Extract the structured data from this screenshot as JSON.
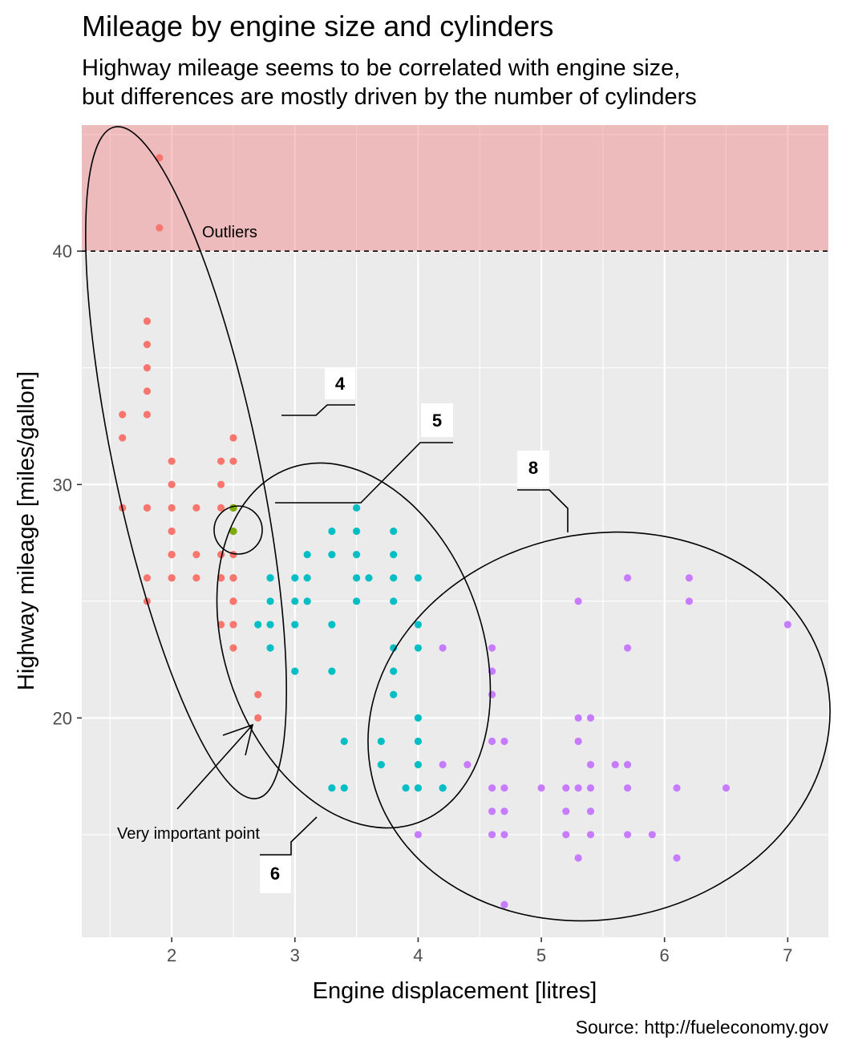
{
  "chart_data": {
    "type": "scatter",
    "title": "Mileage by engine size and cylinders",
    "subtitle_lines": [
      "Highway mileage seems to be correlated with engine size,",
      "but differences are mostly driven by the number of cylinders"
    ],
    "xlabel": "Engine displacement [litres]",
    "ylabel": "Highway mileage [miles/gallon]",
    "caption": "Source: http://fueleconomy.gov",
    "xlim": [
      1.27,
      7.33
    ],
    "ylim": [
      10.6,
      45.4
    ],
    "x_ticks": [
      2,
      3,
      4,
      5,
      6,
      7
    ],
    "y_ticks": [
      20,
      30,
      40
    ],
    "grid": true,
    "legend": "none",
    "threshold": {
      "y": 40,
      "style": "dashed",
      "band_color": "#f08080"
    },
    "colors": {
      "panel": "#ebebeb",
      "grid": "#ffffff",
      "tick_text": "#4d4d4d"
    },
    "series": [
      {
        "group": "4",
        "color": "#f8766d",
        "points": [
          [
            1.8,
            29
          ],
          [
            1.8,
            29
          ],
          [
            2.0,
            31
          ],
          [
            2.0,
            30
          ],
          [
            1.8,
            26
          ],
          [
            1.8,
            25
          ],
          [
            2.0,
            28
          ],
          [
            2.0,
            27
          ],
          [
            2.0,
            26
          ],
          [
            2.4,
            26
          ],
          [
            2.4,
            27
          ],
          [
            2.4,
            31
          ],
          [
            2.4,
            30
          ],
          [
            2.5,
            29
          ],
          [
            2.5,
            29
          ],
          [
            2.5,
            28
          ],
          [
            2.5,
            26
          ],
          [
            2.5,
            26
          ],
          [
            2.5,
            25
          ],
          [
            2.5,
            25
          ],
          [
            2.5,
            24
          ],
          [
            2.5,
            23
          ],
          [
            2.7,
            21
          ],
          [
            2.7,
            20
          ],
          [
            1.8,
            37
          ],
          [
            1.8,
            35
          ],
          [
            1.8,
            36
          ],
          [
            1.8,
            34
          ],
          [
            1.8,
            33
          ],
          [
            1.6,
            32
          ],
          [
            1.6,
            33
          ],
          [
            1.6,
            29
          ],
          [
            2.0,
            29
          ],
          [
            2.2,
            29
          ],
          [
            2.2,
            27
          ],
          [
            2.2,
            26
          ],
          [
            2.4,
            24
          ],
          [
            2.4,
            26
          ],
          [
            2.4,
            29
          ],
          [
            2.5,
            32
          ],
          [
            2.5,
            27
          ],
          [
            2.5,
            31
          ],
          [
            2.0,
            27
          ],
          [
            2.0,
            28
          ],
          [
            2.0,
            26
          ],
          [
            1.9,
            44
          ],
          [
            1.9,
            41
          ]
        ]
      },
      {
        "group": "5",
        "color": "#7cae00",
        "points": [
          [
            2.5,
            29
          ],
          [
            2.5,
            29
          ],
          [
            2.5,
            28
          ]
        ]
      },
      {
        "group": "6",
        "color": "#00bfc4",
        "points": [
          [
            2.8,
            26
          ],
          [
            2.8,
            25
          ],
          [
            2.8,
            24
          ],
          [
            2.8,
            23
          ],
          [
            3.1,
            27
          ],
          [
            3.1,
            25
          ],
          [
            3.1,
            26
          ],
          [
            3.0,
            26
          ],
          [
            3.0,
            25
          ],
          [
            3.0,
            24
          ],
          [
            3.0,
            22
          ],
          [
            2.7,
            24
          ],
          [
            3.3,
            22
          ],
          [
            3.3,
            24
          ],
          [
            3.3,
            27
          ],
          [
            3.3,
            28
          ],
          [
            3.8,
            28
          ],
          [
            3.8,
            27
          ],
          [
            3.8,
            26
          ],
          [
            3.8,
            25
          ],
          [
            3.8,
            23
          ],
          [
            3.8,
            22
          ],
          [
            3.8,
            21
          ],
          [
            3.7,
            19
          ],
          [
            3.7,
            18
          ],
          [
            4.0,
            20
          ],
          [
            4.0,
            19
          ],
          [
            4.0,
            18
          ],
          [
            4.0,
            17
          ],
          [
            4.0,
            24
          ],
          [
            4.0,
            23
          ],
          [
            4.0,
            26
          ],
          [
            3.4,
            19
          ],
          [
            3.4,
            17
          ],
          [
            3.3,
            17
          ],
          [
            3.5,
            26
          ],
          [
            3.5,
            29
          ],
          [
            3.5,
            28
          ],
          [
            3.5,
            27
          ],
          [
            3.5,
            25
          ],
          [
            3.6,
            26
          ],
          [
            3.9,
            17
          ],
          [
            4.2,
            17
          ],
          [
            4.2,
            17
          ],
          [
            2.8,
            26
          ]
        ]
      },
      {
        "group": "8",
        "color": "#c77cff",
        "points": [
          [
            5.3,
            25
          ],
          [
            5.3,
            20
          ],
          [
            5.3,
            19
          ],
          [
            5.3,
            14
          ],
          [
            5.4,
            20
          ],
          [
            5.4,
            18
          ],
          [
            5.4,
            17
          ],
          [
            5.4,
            16
          ],
          [
            5.4,
            15
          ],
          [
            5.7,
            26
          ],
          [
            5.7,
            23
          ],
          [
            5.7,
            18
          ],
          [
            5.7,
            17
          ],
          [
            5.7,
            15
          ],
          [
            6.2,
            26
          ],
          [
            6.2,
            25
          ],
          [
            7.0,
            24
          ],
          [
            4.6,
            23
          ],
          [
            4.6,
            22
          ],
          [
            4.6,
            21
          ],
          [
            4.6,
            19
          ],
          [
            4.6,
            17
          ],
          [
            4.6,
            16
          ],
          [
            4.6,
            15
          ],
          [
            4.7,
            19
          ],
          [
            4.7,
            17
          ],
          [
            4.7,
            16
          ],
          [
            4.7,
            15
          ],
          [
            4.7,
            12
          ],
          [
            5.2,
            17
          ],
          [
            5.2,
            16
          ],
          [
            5.2,
            15
          ],
          [
            5.0,
            17
          ],
          [
            4.4,
            18
          ],
          [
            4.2,
            23
          ],
          [
            4.2,
            18
          ],
          [
            4.0,
            15
          ],
          [
            5.6,
            18
          ],
          [
            5.9,
            15
          ],
          [
            6.1,
            17
          ],
          [
            6.1,
            14
          ],
          [
            6.5,
            17
          ],
          [
            5.3,
            17
          ]
        ]
      }
    ],
    "annotations": {
      "outliers_label": "Outliers",
      "important_point_label": "Very important point",
      "group_labels": [
        "4",
        "5",
        "6",
        "8"
      ]
    }
  }
}
